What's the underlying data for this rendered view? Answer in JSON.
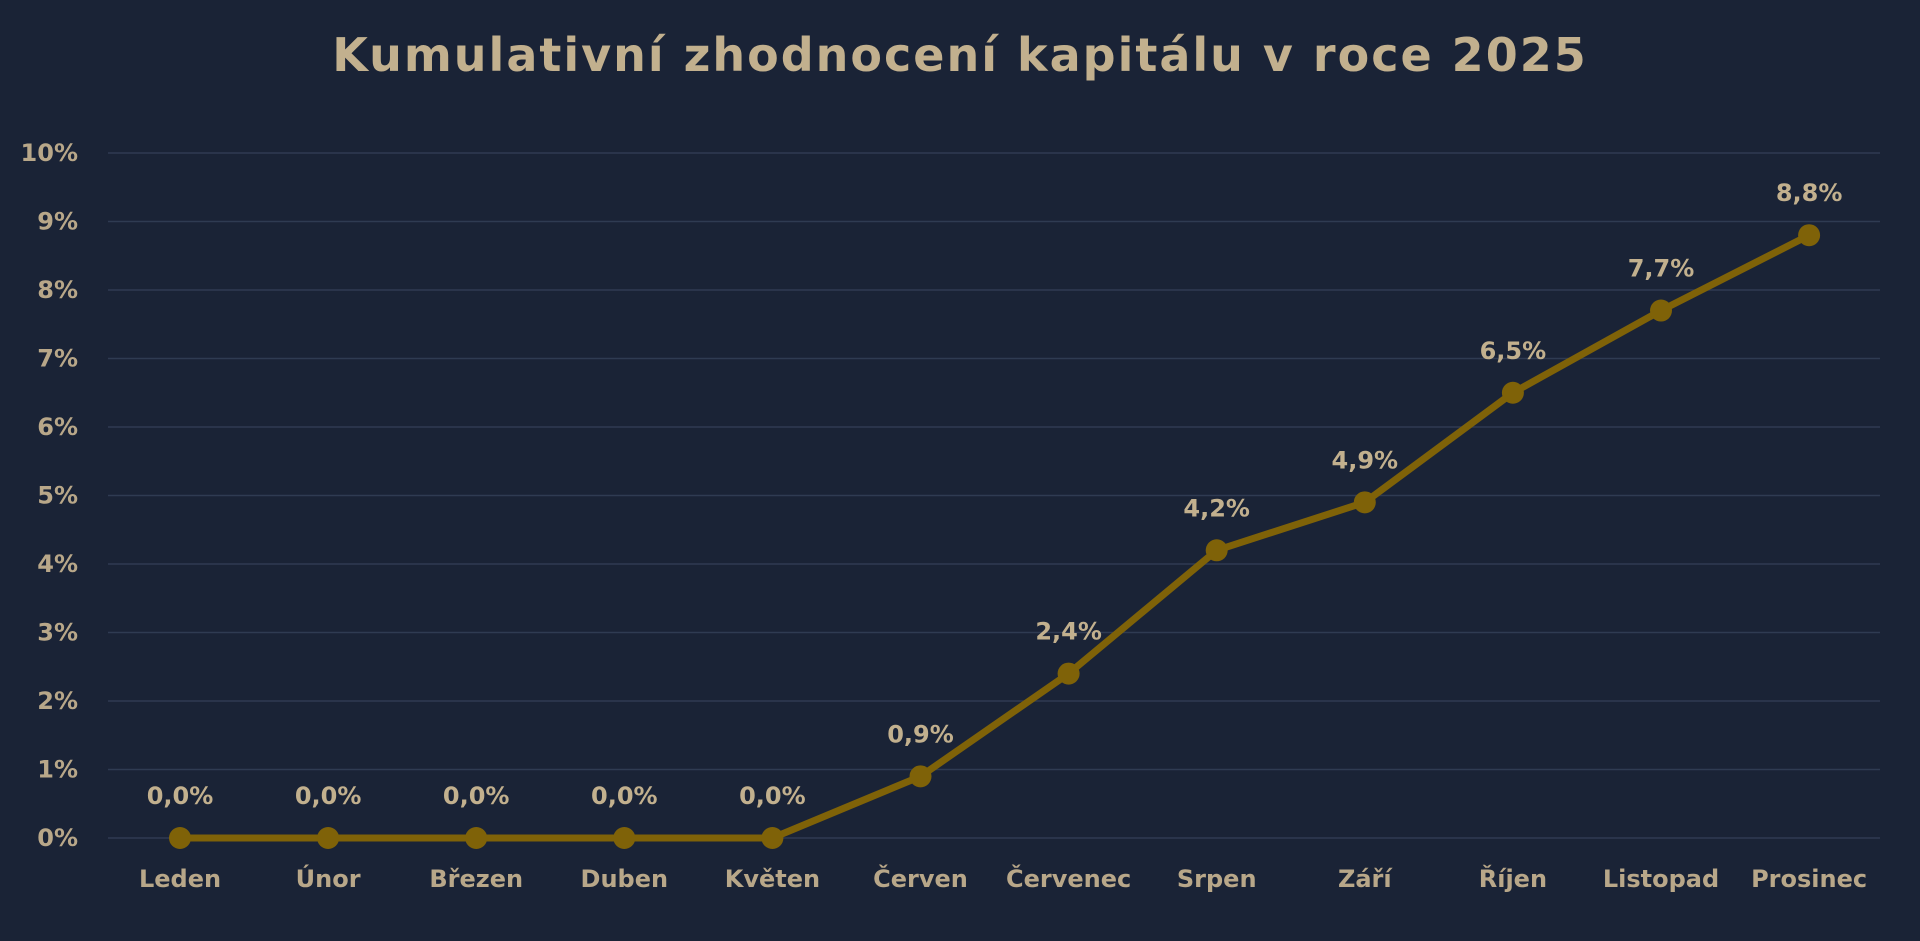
{
  "chart_data": {
    "type": "line",
    "title": "Kumulativní zhodnocení kapitálu v roce 2025",
    "xlabel": "",
    "ylabel": "",
    "categories": [
      "Leden",
      "Únor",
      "Březen",
      "Duben",
      "Květen",
      "Červen",
      "Červenec",
      "Srpen",
      "Září",
      "Říjen",
      "Listopad",
      "Prosinec"
    ],
    "series": [
      {
        "values": [
          0.0,
          0.0,
          0.0,
          0.0,
          0.0,
          0.9,
          2.4,
          4.2,
          4.9,
          6.5,
          7.7,
          8.8
        ],
        "data_labels": [
          "0,0%",
          "0,0%",
          "0,0%",
          "0,0%",
          "0,0%",
          "0,9%",
          "2,4%",
          "4,2%",
          "4,9%",
          "6,5%",
          "7,7%",
          "8,8%"
        ]
      }
    ],
    "ylim": [
      0,
      10
    ],
    "y_ticks": [
      "0%",
      "1%",
      "2%",
      "3%",
      "4%",
      "5%",
      "6%",
      "7%",
      "8%",
      "9%",
      "10%"
    ],
    "grid": true,
    "legend": "none",
    "colors": {
      "background": "#1a2336",
      "line": "#7f6208",
      "text": "#c2b08e",
      "grid": "#2f3b52"
    }
  }
}
